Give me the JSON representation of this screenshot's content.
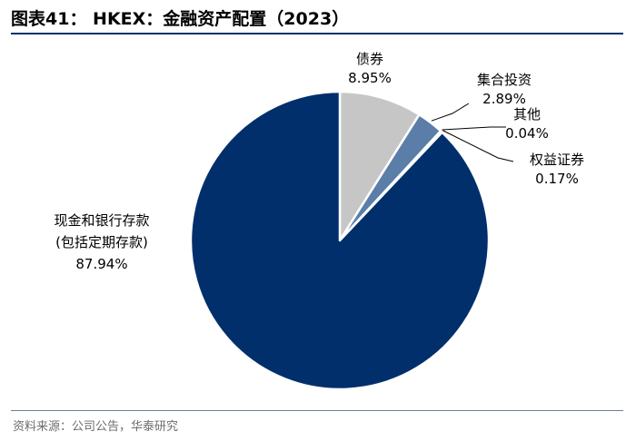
{
  "title": "图表41： HKEX：金融资产配置（2023）",
  "source": "资料来源：公司公告，华泰研究",
  "chart_data": {
    "type": "pie",
    "title": "HKEX：金融资产配置（2023）",
    "slices": [
      {
        "name_lines": [
          "现金和银行存款",
          "(包括定期存款)"
        ],
        "value": 87.94,
        "label": "87.94%",
        "color": "#002F6C"
      },
      {
        "name_lines": [
          "债券"
        ],
        "value": 8.95,
        "label": "8.95%",
        "color": "#C6C6C6"
      },
      {
        "name_lines": [
          "集合投资"
        ],
        "value": 2.89,
        "label": "2.89%",
        "color": "#5A7EA8"
      },
      {
        "name_lines": [
          "其他"
        ],
        "value": 0.04,
        "label": "0.04%",
        "color": "#7F96B5"
      },
      {
        "name_lines": [
          "权益证券"
        ],
        "value": 0.17,
        "label": "0.17%",
        "color": "#002F6C"
      }
    ],
    "start_slice": "债券",
    "direction": "clockwise",
    "legend": "none"
  }
}
